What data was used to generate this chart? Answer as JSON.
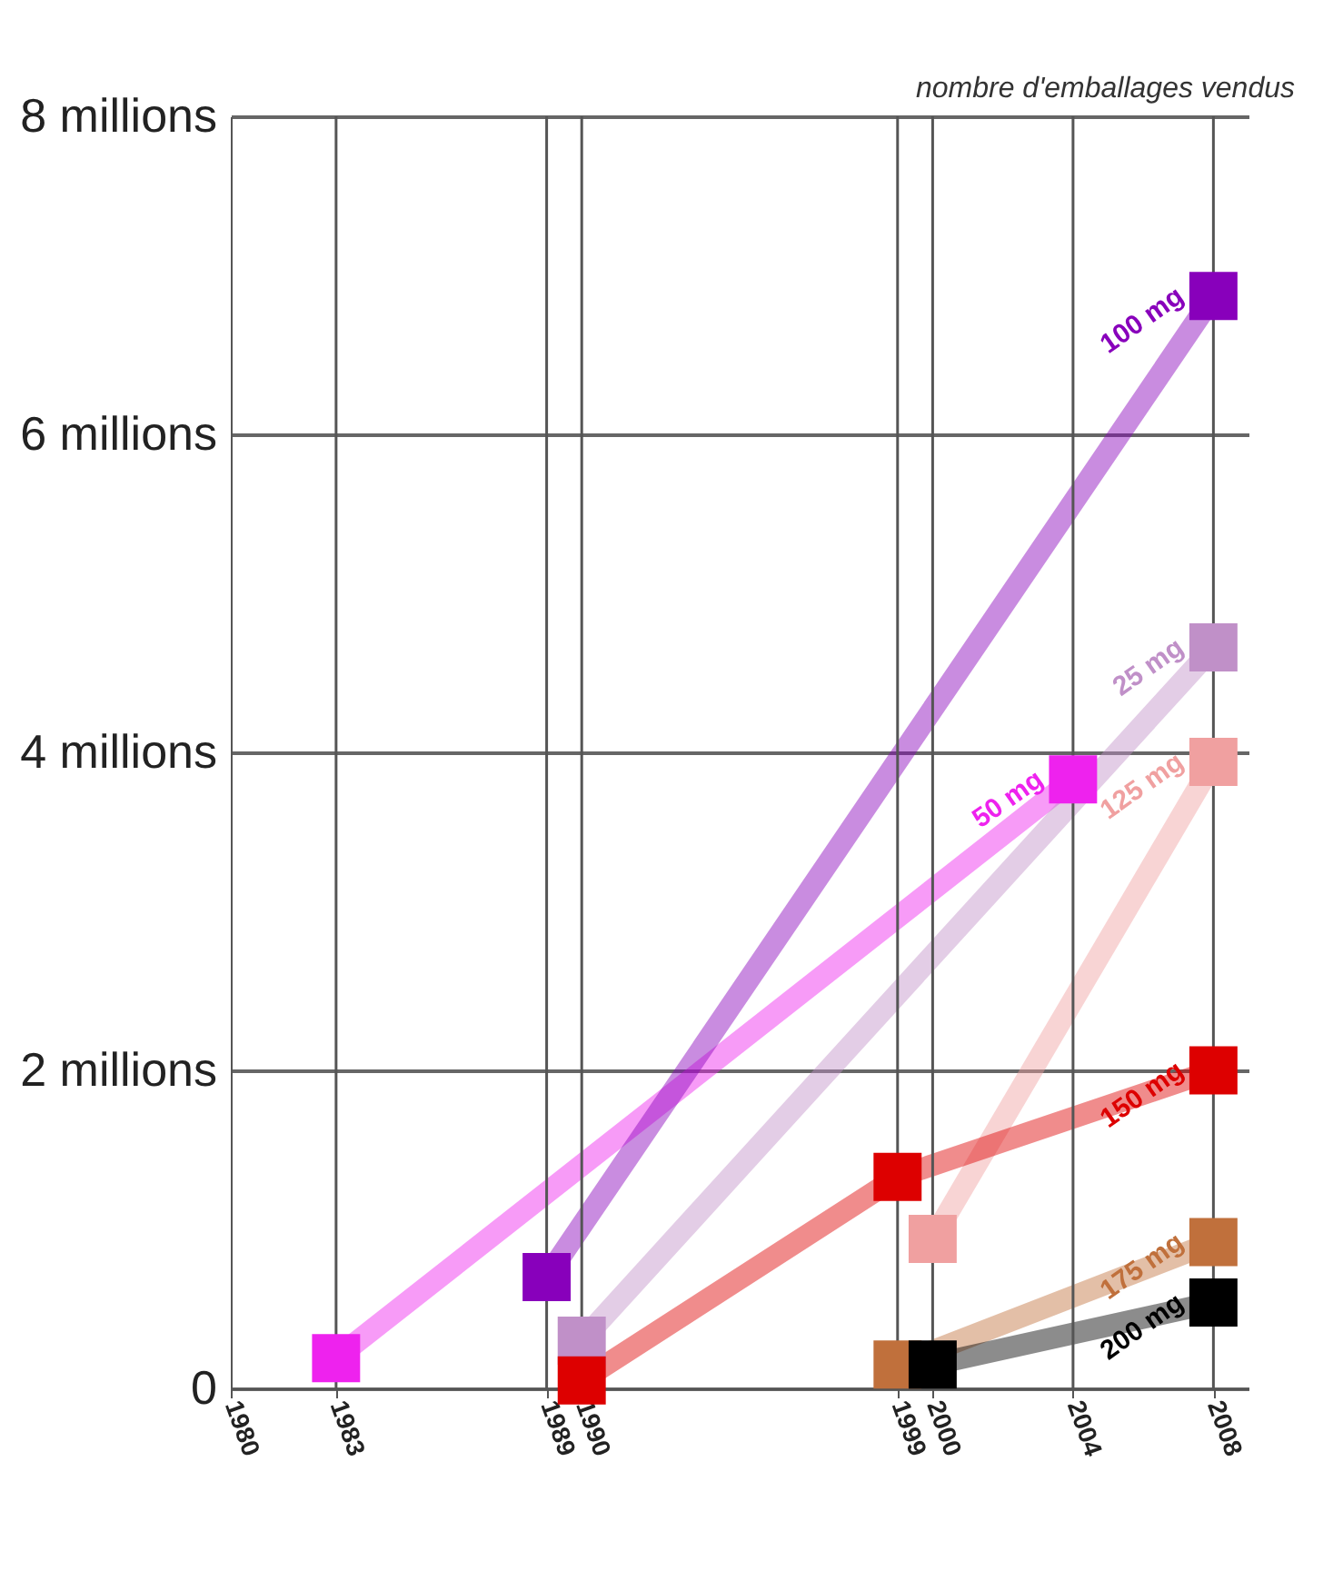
{
  "chart_data": {
    "type": "line",
    "ylabel": "nombre d'emballages vendus",
    "xlim": [
      1980,
      2009
    ],
    "xticks": [
      1980,
      1983,
      1989,
      1990,
      1999,
      2000,
      2004,
      2008
    ],
    "ylim": [
      0,
      8
    ],
    "yticks": [
      {
        "value": 0,
        "label": "0"
      },
      {
        "value": 2,
        "label": "2 millions"
      },
      {
        "value": 4,
        "label": "4 millions"
      },
      {
        "value": 6,
        "label": "6 millions"
      },
      {
        "value": 8,
        "label": "8 millions"
      }
    ],
    "grid": "y",
    "legend": false,
    "marker": "square",
    "line_style": "solid",
    "series": [
      {
        "name": "50 mg",
        "color": "#ee22ee",
        "x": [
          1983,
          2004
        ],
        "values": [
          0.19,
          3.83
        ]
      },
      {
        "name": "100 mg",
        "color": "#8800bb",
        "x": [
          1989,
          2008
        ],
        "values": [
          0.7,
          6.87
        ]
      },
      {
        "name": "25 mg",
        "color": "#c090c8",
        "x": [
          1990,
          2008
        ],
        "values": [
          0.3,
          4.66
        ]
      },
      {
        "name": "125 mg",
        "color": "#f0a0a0",
        "x": [
          2000,
          2008
        ],
        "values": [
          0.94,
          3.94
        ]
      },
      {
        "name": "150 mg",
        "color": "#dd0000",
        "x": [
          1990,
          1999,
          2008
        ],
        "values": [
          0.05,
          1.33,
          2.0
        ]
      },
      {
        "name": "175 mg",
        "color": "#c0703c",
        "x": [
          1999,
          2008
        ],
        "values": [
          0.15,
          0.92
        ]
      },
      {
        "name": "200 mg",
        "color": "#000000",
        "x": [
          2000,
          2008
        ],
        "values": [
          0.15,
          0.54
        ]
      }
    ],
    "ref_lines": [
      {
        "axis": "x",
        "value": 1983,
        "color": "#555555"
      },
      {
        "axis": "x",
        "value": 1989,
        "color": "#555555"
      },
      {
        "axis": "x",
        "value": 1990,
        "color": "#555555"
      },
      {
        "axis": "x",
        "value": 1999,
        "color": "#555555"
      },
      {
        "axis": "x",
        "value": 2000,
        "color": "#555555"
      },
      {
        "axis": "x",
        "value": 2004,
        "color": "#555555"
      },
      {
        "axis": "x",
        "value": 2008,
        "color": "#555555"
      }
    ]
  }
}
